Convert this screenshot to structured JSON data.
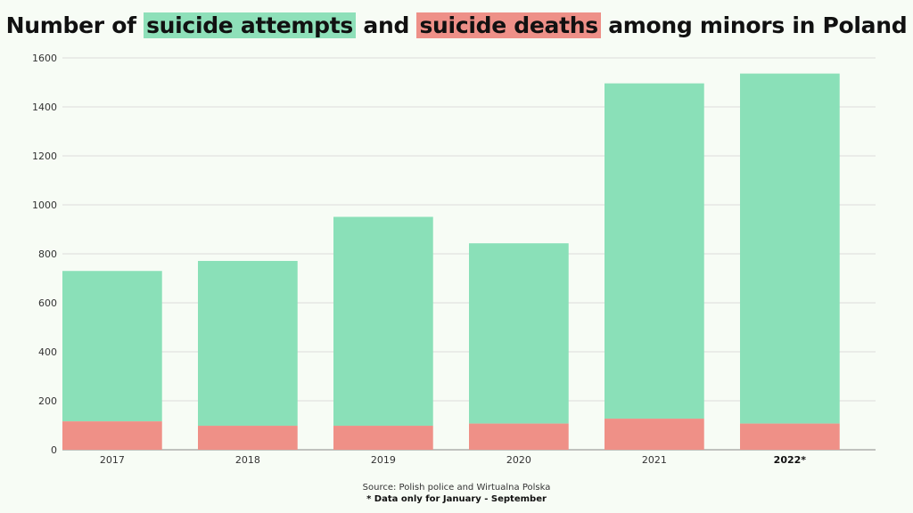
{
  "title": {
    "prefix": "Number of",
    "attempts": "suicide attempts",
    "and": "and",
    "deaths": "suicide deaths",
    "suffix": "among minors in Poland"
  },
  "colors": {
    "attempts": "#8ae0b8",
    "deaths": "#ef9087",
    "background": "#f7fcf5",
    "grid": "#dcdcdc"
  },
  "chart_data": {
    "type": "bar",
    "stacked": true,
    "categories": [
      "2017",
      "2018",
      "2019",
      "2020",
      "2021",
      "2022*"
    ],
    "highlighted_category": "2022*",
    "series": [
      {
        "name": "suicide deaths",
        "values": [
          116,
          98,
          98,
          107,
          127,
          107
        ]
      },
      {
        "name": "suicide attempts",
        "values": [
          614,
          673,
          853,
          736,
          1369,
          1429
        ]
      }
    ],
    "totals": [
      730,
      771,
      951,
      843,
      1496,
      1536
    ],
    "ylim": [
      0,
      1600
    ],
    "yticks": [
      0,
      200,
      400,
      600,
      800,
      1000,
      1200,
      1400,
      1600
    ],
    "grid": true
  },
  "footer": {
    "source": "Source: Polish police and Wirtualna Polska",
    "note": "* Data only for January - September"
  }
}
